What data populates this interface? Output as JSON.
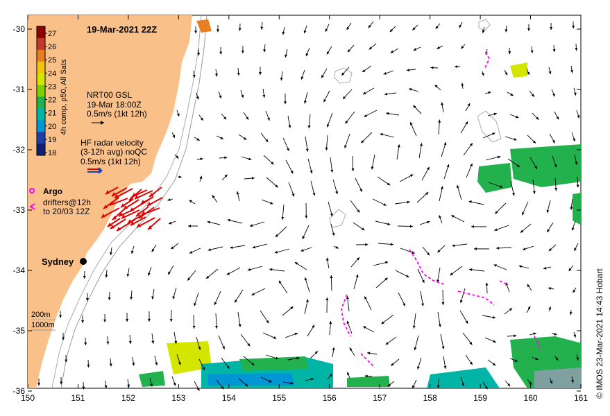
{
  "title": "19-Mar-2021 22Z",
  "colorbar": {
    "label": "4h comp, p50, All Sats",
    "ticks": [
      "27",
      "26",
      "25",
      "24",
      "23",
      "22",
      "21",
      "20",
      "19",
      "18"
    ],
    "colors": [
      "#8b0000",
      "#c0392b",
      "#e67e22",
      "#f1c40f",
      "#d4e600",
      "#7fd000",
      "#22b14c",
      "#00b5a6",
      "#0096d6",
      "#1f3faa",
      "#102070"
    ]
  },
  "nrt": {
    "line1": "NRT00 GSL",
    "line2": "19-Mar 18:00Z",
    "line3": "0.5m/s (1kt 12h)"
  },
  "hf_radar": {
    "line1": "HF radar velocity",
    "line2": "(3-12h avg) noQC",
    "line3": "0.5m/s (1kt 12h)"
  },
  "argo": {
    "label": "Argo"
  },
  "drifters": {
    "line1": "drifters@12h",
    "line2": "to 20/03 12Z"
  },
  "city": {
    "name": "Sydney"
  },
  "depth": {
    "contour1": "200m",
    "contour2": "1000m"
  },
  "credit": "© IMOS 23-Mar-2021 14:43 Hobart",
  "x_ticks": [
    "150",
    "151",
    "152",
    "153",
    "154",
    "155",
    "156",
    "157",
    "158",
    "159",
    "160",
    "161"
  ],
  "y_ticks": [
    "-30",
    "-31",
    "-32",
    "-33",
    "-34",
    "-35",
    "-36"
  ],
  "colors": {
    "land": "#f9c089",
    "drifter": "#ff00ff",
    "hf_arrow": "#e00000"
  }
}
